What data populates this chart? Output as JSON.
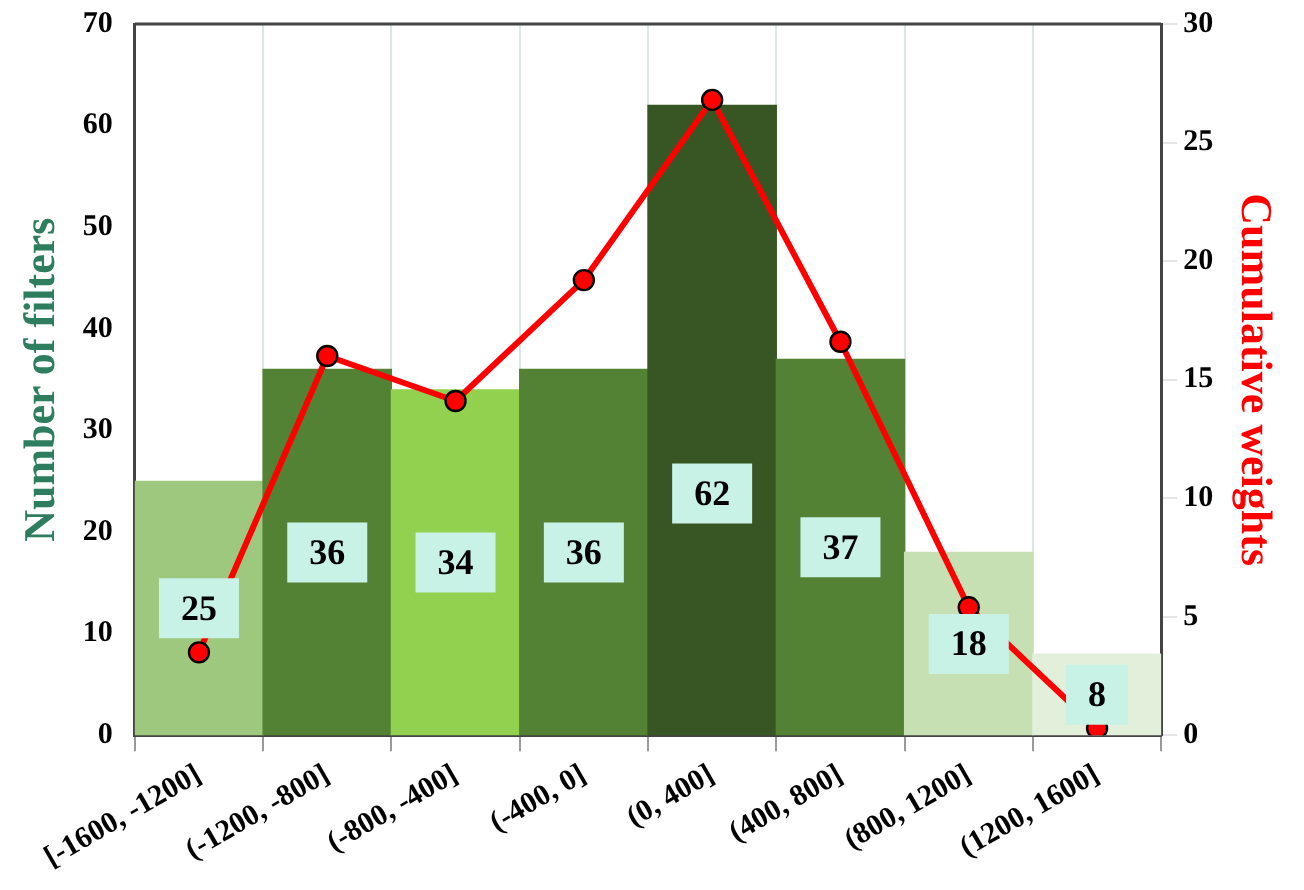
{
  "chart_data": {
    "type": "bar",
    "ylabel": "Number of filters",
    "y2label": "Cumulative weights",
    "categories": [
      "[-1600, -1200]",
      "(-1200, -800]",
      "(-800, -400]",
      "(-400, 0]",
      "(0, 400]",
      "(400, 800]",
      "(800, 1200]",
      "(1200, 1600]"
    ],
    "series": [
      {
        "colors": [
          "#9dc87e",
          "#548235",
          "#92d050",
          "#548235",
          "#375623",
          "#548235",
          "#c6e0b4",
          "#e2efda"
        ],
        "values": [
          25,
          36,
          34,
          36,
          62,
          37,
          18,
          8
        ],
        "value_labels": [
          "25",
          "36",
          "34",
          "36",
          "62",
          "37",
          "18",
          "8"
        ]
      },
      {
        "type": "line",
        "axis": "y2",
        "color": "#ff0000",
        "marker": "circle",
        "values": [
          3.5,
          16.0,
          14.1,
          19.2,
          26.8,
          16.6,
          5.4,
          0.3
        ]
      }
    ],
    "ylim": [
      0,
      70
    ],
    "yticks": [
      0,
      10,
      20,
      30,
      40,
      50,
      60,
      70
    ],
    "y2lim": [
      0,
      30
    ],
    "y2ticks": [
      0,
      5,
      10,
      15,
      20,
      25,
      30
    ],
    "grid": "x",
    "legend": false
  }
}
